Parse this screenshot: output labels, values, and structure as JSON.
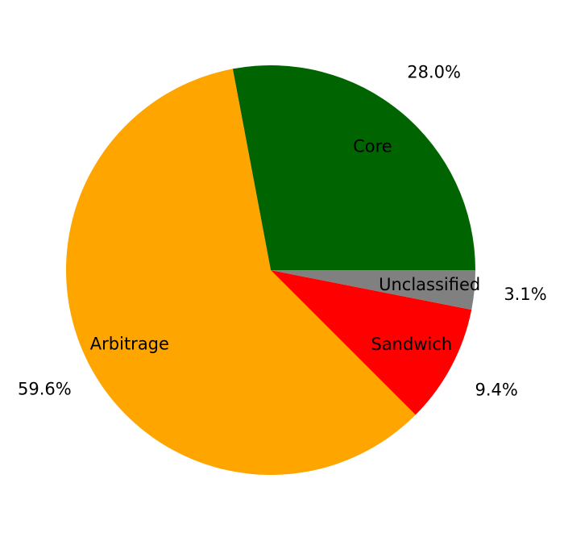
{
  "chart_data": {
    "type": "pie",
    "categories": [
      "Core",
      "Arbitrage",
      "Sandwich",
      "Unclassified"
    ],
    "values": [
      28.0,
      59.6,
      9.4,
      3.1
    ],
    "value_labels": [
      "28.0%",
      "59.6%",
      "9.4%",
      "3.1%"
    ],
    "colors": [
      "#006400",
      "#ffa500",
      "#ff0000",
      "#808080"
    ]
  }
}
